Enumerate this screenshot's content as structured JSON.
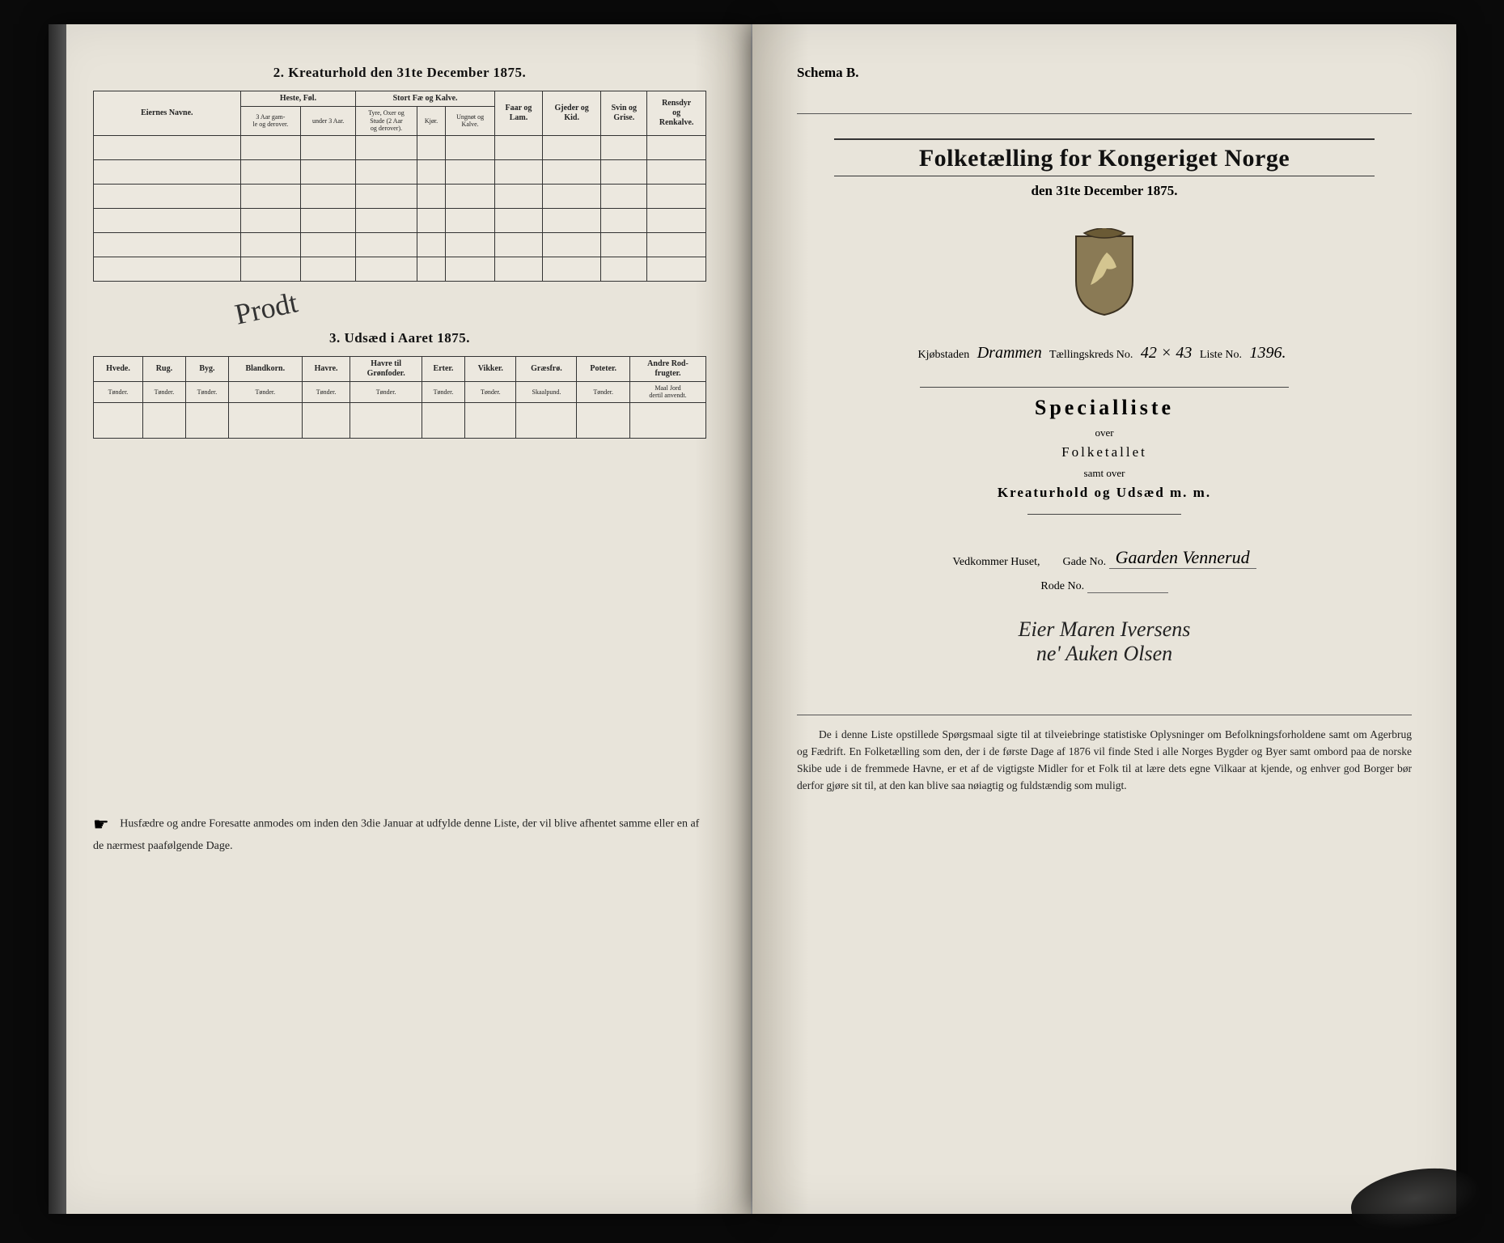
{
  "leftPage": {
    "section2": {
      "title": "2.  Kreaturhold den 31te December 1875.",
      "ownerHeader": "Eiernes Navne.",
      "groups": [
        {
          "label": "Heste, Føl.",
          "subs": [
            "3 Aar gam-<br>le og derover.",
            "under 3 Aar."
          ]
        },
        {
          "label": "Stort Fæ og Kalve.",
          "subs": [
            "Tyre, Oxer og<br>Stude (2 Aar<br>og derover).",
            "Kjør.",
            "Ungnøt og<br>Kalve."
          ]
        },
        {
          "label": "Faar og<br>Lam."
        },
        {
          "label": "Gjeder og<br>Kid."
        },
        {
          "label": "Svin og<br>Grise."
        },
        {
          "label": "Rensdyr<br>og<br>Renkalve."
        }
      ],
      "handwriting": "Prodt"
    },
    "section3": {
      "title": "3.  Udsæd i Aaret 1875.",
      "cols": [
        {
          "h": "Hvede.",
          "u": "Tønder."
        },
        {
          "h": "Rug.",
          "u": "Tønder."
        },
        {
          "h": "Byg.",
          "u": "Tønder."
        },
        {
          "h": "Blandkorn.",
          "u": "Tønder."
        },
        {
          "h": "Havre.",
          "u": "Tønder."
        },
        {
          "h": "Havre til<br>Grønfoder.",
          "u": "Tønder."
        },
        {
          "h": "Erter.",
          "u": "Tønder."
        },
        {
          "h": "Vikker.",
          "u": "Tønder."
        },
        {
          "h": "Græsfrø.",
          "u": "Skaalpund."
        },
        {
          "h": "Poteter.",
          "u": "Tønder."
        },
        {
          "h": "Andre Rod-<br>frugter.",
          "u": "Maal Jord<br>dertil anvendt."
        }
      ]
    },
    "footer": "Husfædre og andre Foresatte anmodes om inden den 3die Januar at udfylde denne Liste, der vil blive afhentet samme eller en af de nærmest paafølgende Dage."
  },
  "rightPage": {
    "schema": "Schema B.",
    "title": "Folketælling for Kongeriget Norge",
    "date": "den 31te December 1875.",
    "kreds": {
      "kjobstad_label": "Kjøbstaden",
      "kjobstad_value": "Drammen",
      "kreds_label": "Tællingskreds No.",
      "kreds_value": "42 × 43",
      "liste_label": "Liste No.",
      "liste_value": "1396."
    },
    "special": {
      "headline": "Specialliste",
      "over": "over",
      "folketallet": "Folketallet",
      "samt": "samt over",
      "kreatur": "Kreaturhold og Udsæd m. m."
    },
    "house": {
      "label1": "Vedkommer Huset,",
      "label2": "Gade No.",
      "gade_value": "Gaarden Vennerud",
      "rode_label": "Rode No.",
      "rode_value": ""
    },
    "eier": "Eier Maren Iversens<br>ne' Auken Olsen",
    "bottom": "De i denne Liste opstillede Spørgsmaal sigte til at tilveiebringe statistiske Oplysninger om Befolkningsforholdene samt om Agerbrug og Fædrift.  En Folketælling som den, der i de første Dage af 1876 vil finde Sted i alle Norges Bygder og Byer samt ombord paa de norske Skibe ude i de fremmede Havne, er et af de vigtigste Midler for et Folk til at lære dets egne Vilkaar at kjende, og enhver god Borger bør derfor gjøre sit til, at den kan blive saa nøiagtig og fuldstændig som muligt."
  }
}
